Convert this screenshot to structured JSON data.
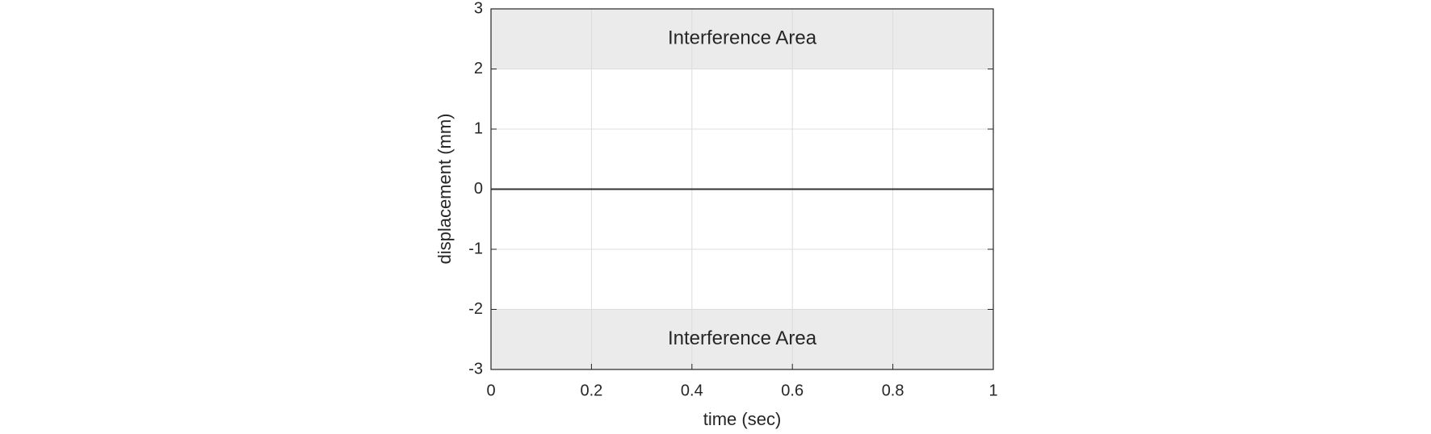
{
  "chart_data": {
    "type": "line",
    "xlabel": "time (sec)",
    "ylabel": "displacement (mm)",
    "x": [
      0,
      1
    ],
    "series": [
      {
        "name": "displacement",
        "color": "#333333",
        "values": [
          0,
          0
        ]
      }
    ],
    "bands": [
      {
        "y0": 2,
        "y1": 3,
        "label": "Interference Area",
        "color": "#ebebeb"
      },
      {
        "y0": -3,
        "y1": -2,
        "label": "Interference Area",
        "color": "#ebebeb"
      }
    ],
    "xlim": [
      0,
      1
    ],
    "xticks": [
      0,
      0.2,
      0.4,
      0.6,
      0.8,
      1
    ],
    "ylim": [
      -3,
      3
    ],
    "yticks": [
      -3,
      -2,
      -1,
      0,
      1,
      2,
      3
    ],
    "grid": true
  }
}
